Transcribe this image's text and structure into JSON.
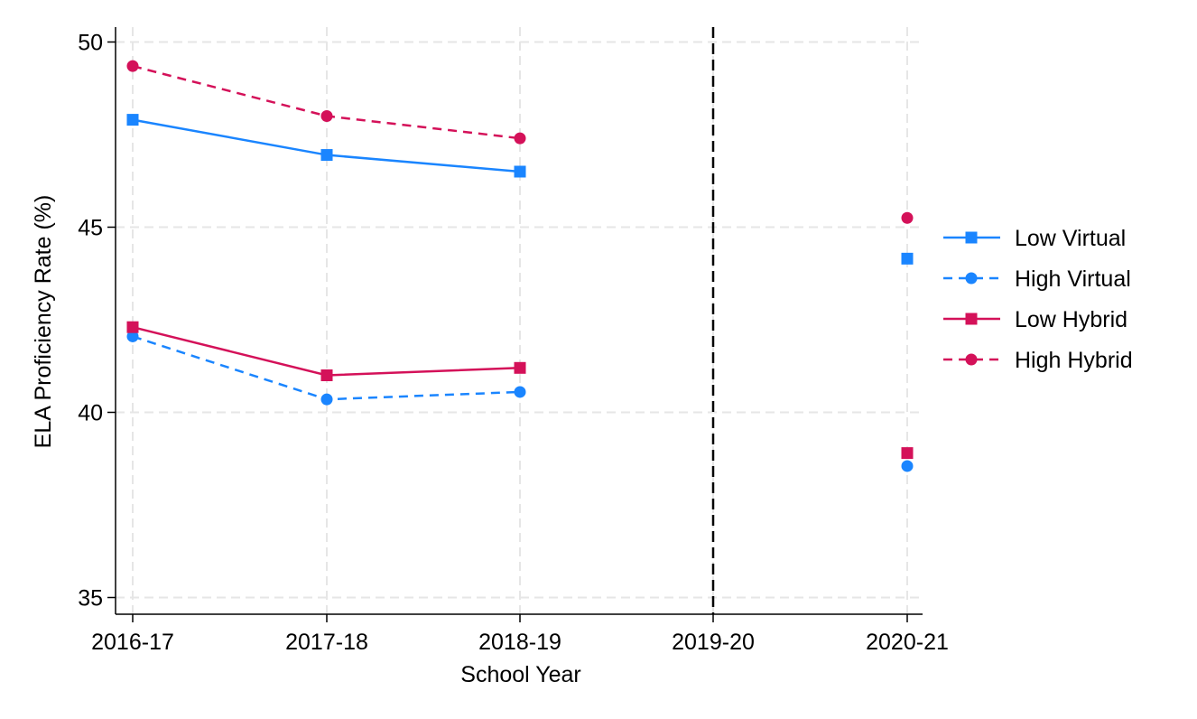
{
  "chart_data": {
    "type": "line",
    "title": "",
    "xlabel": "School Year",
    "ylabel": "ELA Proficiency Rate (%)",
    "categories": [
      "2016-17",
      "2017-18",
      "2018-19",
      "2019-20",
      "2020-21"
    ],
    "yticks": [
      35,
      40,
      45,
      50
    ],
    "ylim": [
      34.6,
      50.4
    ],
    "grid": true,
    "reference_line": {
      "category": "2019-20",
      "style": "dashed",
      "color": "#000000"
    },
    "legend_position": "right",
    "series": [
      {
        "name": "Low Virtual",
        "color": "#1a85ff",
        "marker": "square",
        "line": "solid",
        "values": [
          47.9,
          46.95,
          46.5,
          null,
          44.15
        ]
      },
      {
        "name": "High Virtual",
        "color": "#1a85ff",
        "marker": "circle",
        "line": "dashed",
        "values": [
          42.05,
          40.35,
          40.55,
          null,
          38.55
        ]
      },
      {
        "name": "Low Hybrid",
        "color": "#d41159",
        "marker": "square",
        "line": "solid",
        "values": [
          42.3,
          41.0,
          41.2,
          null,
          38.9
        ]
      },
      {
        "name": "High Hybrid",
        "color": "#d41159",
        "marker": "circle",
        "line": "dashed",
        "values": [
          49.35,
          48.0,
          47.4,
          null,
          45.25
        ]
      }
    ]
  }
}
